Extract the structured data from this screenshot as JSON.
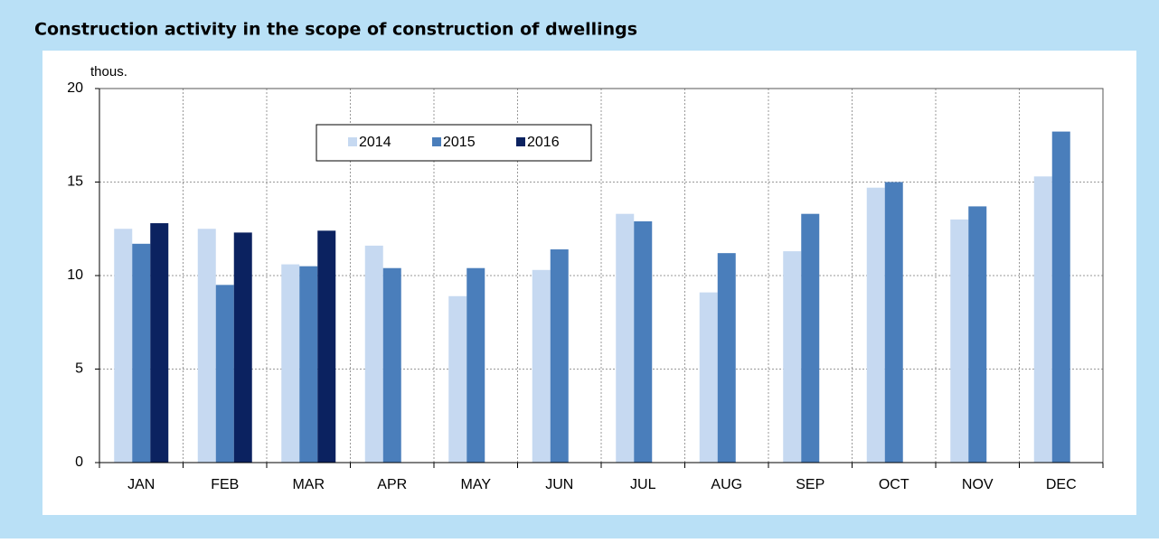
{
  "chart_data": {
    "type": "bar",
    "title": "Construction activity in the scope of construction of dwellings",
    "unit_label": "thous.",
    "categories": [
      "JAN",
      "FEB",
      "MAR",
      "APR",
      "MAY",
      "JUN",
      "JUL",
      "AUG",
      "SEP",
      "OCT",
      "NOV",
      "DEC"
    ],
    "series": [
      {
        "name": "2014",
        "color": "#c6d9f1",
        "values": [
          12.5,
          12.5,
          10.6,
          11.6,
          8.9,
          10.3,
          13.3,
          9.1,
          11.3,
          14.7,
          13.0,
          15.3
        ]
      },
      {
        "name": "2015",
        "color": "#4a7ebb",
        "values": [
          11.7,
          9.5,
          10.5,
          10.4,
          10.4,
          11.4,
          12.9,
          11.2,
          13.3,
          15.0,
          13.7,
          17.7
        ]
      },
      {
        "name": "2016",
        "color": "#0b2260",
        "values": [
          12.8,
          12.3,
          12.4,
          null,
          null,
          null,
          null,
          null,
          null,
          null,
          null,
          null
        ]
      }
    ],
    "ylim": [
      0,
      20
    ],
    "yticks": [
      0,
      5,
      10,
      15,
      20
    ],
    "grid": true
  }
}
